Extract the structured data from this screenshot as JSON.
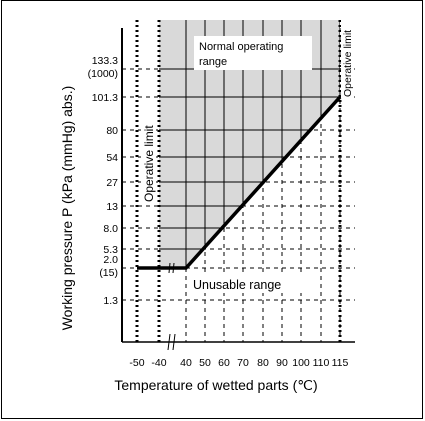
{
  "chart_data": {
    "type": "line",
    "xlabel": "Temperature of wetted parts (℃)",
    "ylabel": "Working pressure P (kPa (mmHg) abs.)",
    "x_ticks": [
      "-50",
      "-40",
      "40",
      "50",
      "60",
      "70",
      "80",
      "90",
      "100",
      "110",
      "115"
    ],
    "y_ticks": [
      {
        "value": "133.3",
        "sub": "(1000)"
      },
      {
        "value": "101.3",
        "sub": ""
      },
      {
        "value": "80",
        "sub": ""
      },
      {
        "value": "54",
        "sub": ""
      },
      {
        "value": "27",
        "sub": ""
      },
      {
        "value": "13",
        "sub": ""
      },
      {
        "value": "8.0",
        "sub": ""
      },
      {
        "value": "5.3",
        "sub": ""
      },
      {
        "value": "2.0",
        "sub": "(15)"
      },
      {
        "value": "1.3",
        "sub": ""
      }
    ],
    "boundary_line": {
      "x": [
        "-50",
        "40",
        "115"
      ],
      "y": [
        "2.0",
        "2.0",
        "101.3"
      ]
    },
    "operative_limit_x": [
      "-50",
      "-40",
      "115"
    ],
    "annotations": {
      "normal_range": "Normal operating range",
      "unusable_range": "Unusable range",
      "operative_limit_left": "Operative limit",
      "operative_limit_right": "Operative limit"
    },
    "colors": {
      "normal_fill": "#d9d9d9",
      "line": "#000000"
    }
  }
}
